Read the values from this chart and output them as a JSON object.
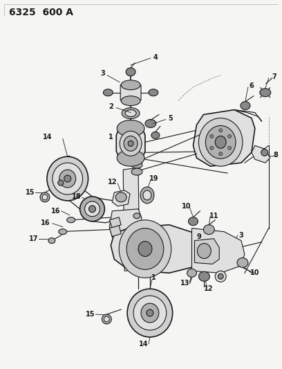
{
  "title": "6325 600 A",
  "bg": "#f5f5f3",
  "fg": "#1a1a1a",
  "title_fs": 10,
  "fig_w": 4.08,
  "fig_h": 5.33,
  "dpi": 100,
  "gray_light": "#d0d0d0",
  "gray_mid": "#b0b0b0",
  "gray_dark": "#888888",
  "gray_fill": "#e0e0e0",
  "white": "#f8f8f8"
}
